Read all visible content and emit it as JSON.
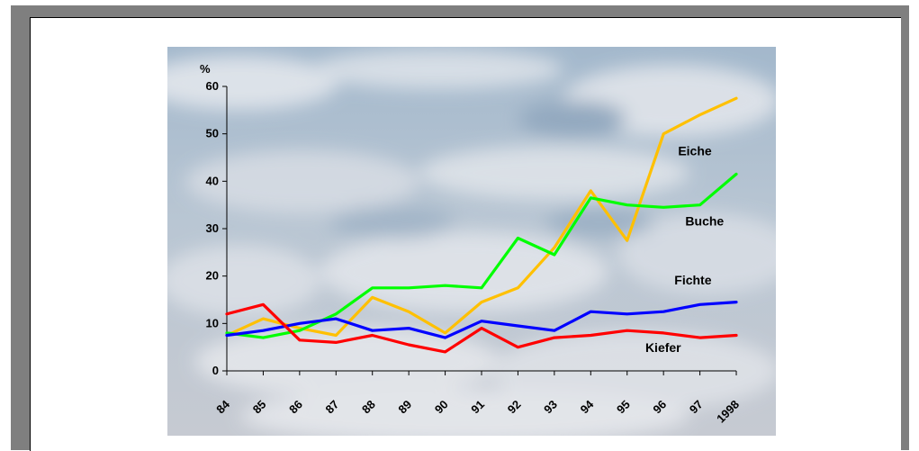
{
  "chart_data": {
    "type": "line",
    "title": "",
    "ylabel": "%",
    "xlabel": "",
    "x": [
      "84",
      "85",
      "86",
      "87",
      "88",
      "89",
      "90",
      "91",
      "92",
      "93",
      "94",
      "95",
      "96",
      "97",
      "1998"
    ],
    "ylim": [
      0,
      60
    ],
    "yticks": [
      "0",
      "10",
      "20",
      "30",
      "40",
      "50",
      "60"
    ],
    "grid": false,
    "background": "cloudy sky photo",
    "series": [
      {
        "name": "Eiche",
        "color": "#ffc000",
        "values": [
          7.5,
          11,
          9,
          7.5,
          15.5,
          12.5,
          8,
          14.5,
          17.5,
          26,
          38,
          27.5,
          50,
          54,
          57.5
        ]
      },
      {
        "name": "Buche",
        "color": "#00ff00",
        "values": [
          8,
          7,
          8.5,
          12,
          17.5,
          17.5,
          18,
          17.5,
          28,
          24.5,
          36.5,
          35,
          34.5,
          35,
          41.5
        ]
      },
      {
        "name": "Fichte",
        "color": "#0000ff",
        "values": [
          7.5,
          8.5,
          10,
          11,
          8.5,
          9,
          7,
          10.5,
          9.5,
          8.5,
          12.5,
          12,
          12.5,
          14,
          14.5
        ]
      },
      {
        "name": "Kiefer",
        "color": "#ff0000",
        "values": [
          12,
          14,
          6.5,
          6,
          7.5,
          5.5,
          4,
          9,
          5,
          7,
          7.5,
          8.5,
          8,
          7,
          7.5
        ]
      }
    ]
  }
}
